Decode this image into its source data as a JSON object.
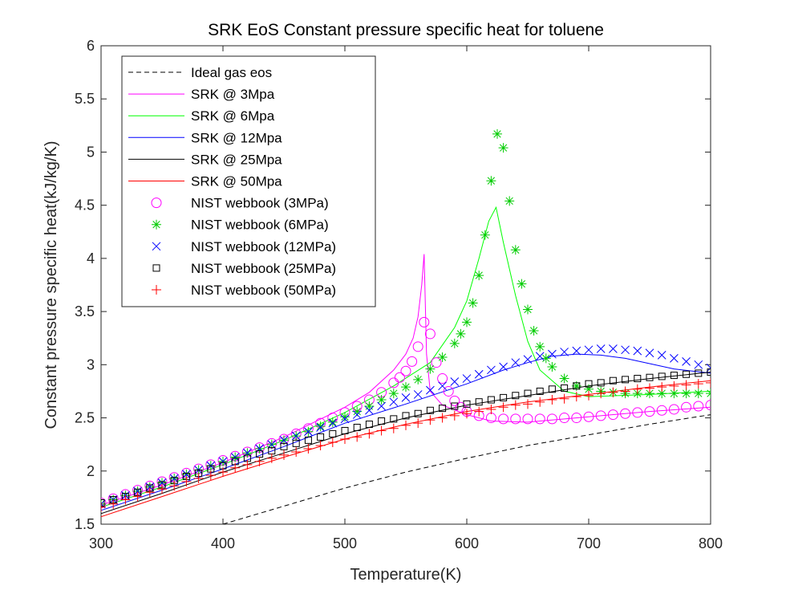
{
  "chart_data": {
    "type": "line",
    "title": "SRK EoS Constant pressure specific heat for toluene",
    "xlabel": "Temperature(K)",
    "ylabel": "Constant pressure specific heat(kJ/kg/K)",
    "xlim": [
      300,
      800
    ],
    "ylim": [
      1.5,
      6
    ],
    "xticks": [
      "300",
      "400",
      "500",
      "600",
      "700",
      "800"
    ],
    "yticks": [
      "1.5",
      "2",
      "2.5",
      "3",
      "3.5",
      "4",
      "4.5",
      "5",
      "5.5",
      "6"
    ],
    "grid": false,
    "legend_position": "top-left",
    "legend": [
      "Ideal gas eos",
      "SRK @ 3Mpa",
      "SRK @ 6Mpa",
      "SRK @ 12Mpa",
      "SRK @ 25Mpa",
      "SRK @ 50Mpa",
      "NIST webbook (3MPa)",
      "NIST webbook (6MPa)",
      "NIST webbook (12MPa)",
      "NIST webbook (25MPa)",
      "NIST webbook (50MPa)"
    ],
    "lines": [
      {
        "name": "Ideal gas eos",
        "color": "#000000",
        "dash": true,
        "x": [
          400,
          450,
          500,
          550,
          600,
          650,
          700,
          750,
          800
        ],
        "y": [
          1.5,
          1.67,
          1.84,
          1.99,
          2.12,
          2.24,
          2.34,
          2.44,
          2.53
        ]
      },
      {
        "name": "SRK @ 3Mpa",
        "color": "#ff00ff",
        "x": [
          300,
          350,
          400,
          450,
          500,
          520,
          540,
          550,
          556,
          560,
          563,
          565,
          567,
          570,
          580,
          600,
          620,
          650,
          700,
          750,
          800
        ],
        "y": [
          1.68,
          1.87,
          2.08,
          2.32,
          2.6,
          2.74,
          2.95,
          3.1,
          3.25,
          3.45,
          3.75,
          4.04,
          3.1,
          2.75,
          2.62,
          2.53,
          2.47,
          2.46,
          2.51,
          2.56,
          2.6
        ]
      },
      {
        "name": "SRK @ 6Mpa",
        "color": "#00ff00",
        "x": [
          300,
          350,
          400,
          450,
          500,
          540,
          570,
          590,
          600,
          610,
          618,
          624,
          630,
          640,
          650,
          660,
          680,
          700,
          750,
          800
        ],
        "y": [
          1.66,
          1.85,
          2.06,
          2.29,
          2.55,
          2.8,
          3.02,
          3.35,
          3.6,
          4.0,
          4.35,
          4.48,
          4.15,
          3.65,
          3.22,
          2.95,
          2.75,
          2.7,
          2.72,
          2.75
        ]
      },
      {
        "name": "SRK @ 12Mpa",
        "color": "#0000ff",
        "x": [
          300,
          350,
          400,
          450,
          500,
          550,
          600,
          630,
          650,
          670,
          690,
          710,
          730,
          750,
          770,
          800
        ],
        "y": [
          1.63,
          1.82,
          2.02,
          2.23,
          2.45,
          2.63,
          2.82,
          2.95,
          3.02,
          3.08,
          3.1,
          3.09,
          3.06,
          3.01,
          2.96,
          2.92
        ]
      },
      {
        "name": "SRK @ 25Mpa",
        "color": "#000000",
        "x": [
          300,
          350,
          400,
          450,
          500,
          550,
          600,
          650,
          700,
          750,
          800
        ],
        "y": [
          1.6,
          1.79,
          1.99,
          2.17,
          2.35,
          2.5,
          2.62,
          2.71,
          2.8,
          2.87,
          2.93
        ]
      },
      {
        "name": "SRK @ 50Mpa",
        "color": "#ff0000",
        "x": [
          300,
          350,
          400,
          450,
          500,
          550,
          600,
          650,
          700,
          750,
          800
        ],
        "y": [
          1.57,
          1.76,
          1.95,
          2.13,
          2.3,
          2.44,
          2.56,
          2.65,
          2.72,
          2.79,
          2.85
        ]
      }
    ],
    "scatter": [
      {
        "name": "NIST webbook (3MPa)",
        "color": "#ff00ff",
        "marker": "circle",
        "x": [
          300,
          310,
          320,
          330,
          340,
          350,
          360,
          370,
          380,
          390,
          400,
          410,
          420,
          430,
          440,
          450,
          460,
          470,
          480,
          490,
          500,
          510,
          520,
          530,
          540,
          545,
          550,
          555,
          560,
          565,
          570,
          575,
          580,
          585,
          590,
          595,
          600,
          610,
          620,
          630,
          640,
          650,
          660,
          670,
          680,
          690,
          700,
          710,
          720,
          730,
          740,
          750,
          760,
          770,
          780,
          790,
          800
        ],
        "y": [
          1.7,
          1.74,
          1.78,
          1.82,
          1.86,
          1.9,
          1.94,
          1.98,
          2.02,
          2.06,
          2.1,
          2.14,
          2.18,
          2.22,
          2.26,
          2.3,
          2.35,
          2.4,
          2.45,
          2.5,
          2.55,
          2.61,
          2.67,
          2.74,
          2.83,
          2.88,
          2.94,
          3.03,
          3.17,
          3.4,
          3.29,
          3.02,
          2.87,
          2.75,
          2.66,
          2.6,
          2.56,
          2.52,
          2.5,
          2.49,
          2.49,
          2.49,
          2.49,
          2.49,
          2.5,
          2.5,
          2.51,
          2.52,
          2.53,
          2.54,
          2.55,
          2.56,
          2.57,
          2.58,
          2.6,
          2.61,
          2.62
        ]
      },
      {
        "name": "NIST webbook (6MPa)",
        "color": "#00cc00",
        "marker": "asterisk",
        "x": [
          300,
          310,
          320,
          330,
          340,
          350,
          360,
          370,
          380,
          390,
          400,
          410,
          420,
          430,
          440,
          450,
          460,
          470,
          480,
          490,
          500,
          510,
          520,
          530,
          540,
          550,
          560,
          570,
          580,
          590,
          595,
          600,
          605,
          610,
          615,
          620,
          625,
          630,
          635,
          640,
          645,
          650,
          655,
          660,
          665,
          670,
          680,
          690,
          700,
          710,
          720,
          730,
          740,
          750,
          760,
          770,
          780,
          790,
          800
        ],
        "y": [
          1.69,
          1.73,
          1.77,
          1.81,
          1.85,
          1.89,
          1.93,
          1.97,
          2.01,
          2.05,
          2.09,
          2.13,
          2.17,
          2.21,
          2.25,
          2.29,
          2.33,
          2.37,
          2.42,
          2.46,
          2.51,
          2.56,
          2.61,
          2.67,
          2.73,
          2.79,
          2.86,
          2.96,
          3.07,
          3.2,
          3.29,
          3.4,
          3.58,
          3.84,
          4.22,
          4.73,
          5.17,
          5.04,
          4.54,
          4.08,
          3.76,
          3.52,
          3.32,
          3.17,
          3.06,
          2.98,
          2.87,
          2.8,
          2.77,
          2.75,
          2.74,
          2.73,
          2.73,
          2.73,
          2.73,
          2.73,
          2.73,
          2.73,
          2.73
        ]
      },
      {
        "name": "NIST webbook (12MPa)",
        "color": "#0000ff",
        "marker": "x",
        "x": [
          300,
          310,
          320,
          330,
          340,
          350,
          360,
          370,
          380,
          390,
          400,
          410,
          420,
          430,
          440,
          450,
          460,
          470,
          480,
          490,
          500,
          510,
          520,
          530,
          540,
          550,
          560,
          570,
          580,
          590,
          600,
          610,
          620,
          630,
          640,
          650,
          660,
          670,
          680,
          690,
          700,
          710,
          720,
          730,
          740,
          750,
          760,
          770,
          780,
          790,
          800
        ],
        "y": [
          1.69,
          1.73,
          1.77,
          1.81,
          1.85,
          1.89,
          1.93,
          1.97,
          2.01,
          2.05,
          2.09,
          2.13,
          2.17,
          2.21,
          2.25,
          2.29,
          2.33,
          2.37,
          2.41,
          2.45,
          2.49,
          2.53,
          2.57,
          2.61,
          2.65,
          2.69,
          2.72,
          2.76,
          2.8,
          2.84,
          2.87,
          2.91,
          2.95,
          2.98,
          3.02,
          3.05,
          3.08,
          3.1,
          3.12,
          3.13,
          3.14,
          3.15,
          3.15,
          3.14,
          3.13,
          3.11,
          3.09,
          3.06,
          3.03,
          3.0,
          2.97
        ]
      },
      {
        "name": "NIST webbook (25MPa)",
        "color": "#000000",
        "marker": "square",
        "x": [
          300,
          310,
          320,
          330,
          340,
          350,
          360,
          370,
          380,
          390,
          400,
          410,
          420,
          430,
          440,
          450,
          460,
          470,
          480,
          490,
          500,
          510,
          520,
          530,
          540,
          550,
          560,
          570,
          580,
          590,
          600,
          610,
          620,
          630,
          640,
          650,
          660,
          670,
          680,
          690,
          700,
          710,
          720,
          730,
          740,
          750,
          760,
          770,
          780,
          790,
          800
        ],
        "y": [
          1.7,
          1.73,
          1.76,
          1.8,
          1.84,
          1.87,
          1.91,
          1.95,
          1.98,
          2.02,
          2.05,
          2.09,
          2.12,
          2.16,
          2.19,
          2.23,
          2.26,
          2.29,
          2.32,
          2.35,
          2.38,
          2.41,
          2.44,
          2.47,
          2.49,
          2.52,
          2.54,
          2.57,
          2.59,
          2.61,
          2.63,
          2.65,
          2.67,
          2.69,
          2.71,
          2.73,
          2.75,
          2.77,
          2.78,
          2.8,
          2.82,
          2.83,
          2.85,
          2.86,
          2.87,
          2.88,
          2.89,
          2.9,
          2.91,
          2.92,
          2.93
        ]
      },
      {
        "name": "NIST webbook (50MPa)",
        "color": "#ff0000",
        "marker": "plus",
        "x": [
          300,
          310,
          320,
          330,
          340,
          350,
          360,
          370,
          380,
          390,
          400,
          410,
          420,
          430,
          440,
          450,
          460,
          470,
          480,
          490,
          500,
          510,
          520,
          530,
          540,
          550,
          560,
          570,
          580,
          590,
          600,
          610,
          620,
          630,
          640,
          650,
          660,
          670,
          680,
          690,
          700,
          710,
          720,
          730,
          740,
          750,
          760,
          770,
          780,
          790,
          800
        ],
        "y": [
          1.66,
          1.69,
          1.73,
          1.76,
          1.8,
          1.83,
          1.86,
          1.9,
          1.93,
          1.96,
          1.99,
          2.03,
          2.06,
          2.09,
          2.12,
          2.15,
          2.18,
          2.21,
          2.24,
          2.27,
          2.3,
          2.32,
          2.35,
          2.38,
          2.4,
          2.43,
          2.45,
          2.48,
          2.5,
          2.52,
          2.54,
          2.56,
          2.58,
          2.6,
          2.62,
          2.63,
          2.65,
          2.67,
          2.68,
          2.7,
          2.71,
          2.73,
          2.74,
          2.75,
          2.77,
          2.78,
          2.79,
          2.8,
          2.81,
          2.82,
          2.83
        ]
      }
    ]
  }
}
